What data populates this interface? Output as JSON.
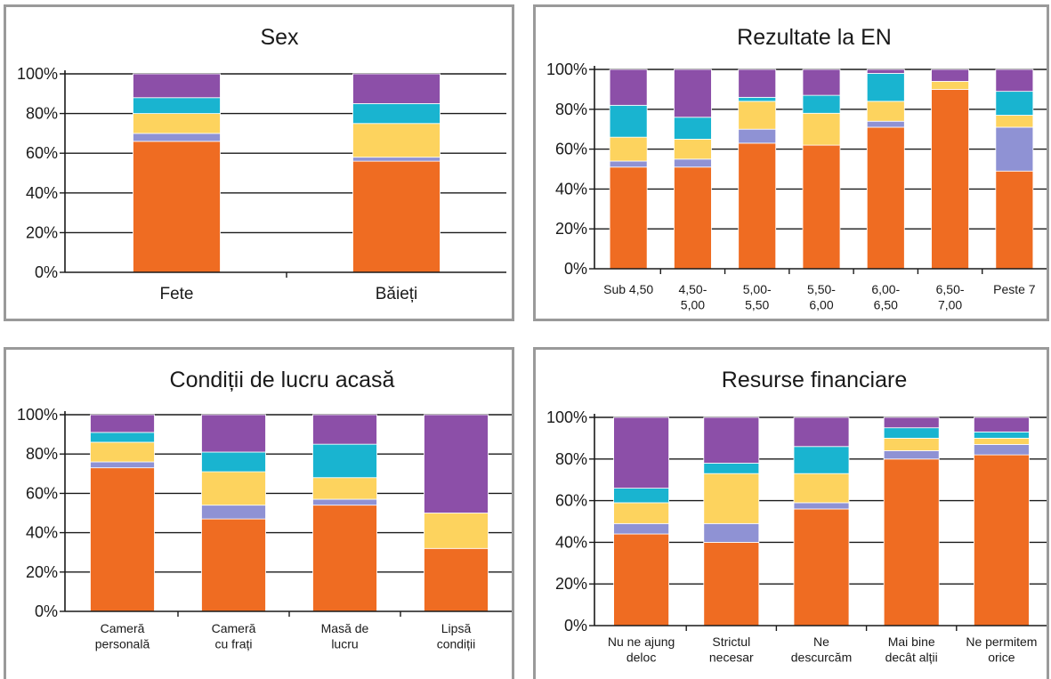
{
  "colors": {
    "series": [
      "#ef6c22",
      "#8f92d4",
      "#fdd35e",
      "#19b4d0",
      "#8c4fa8"
    ],
    "axis": "#1a1a1a",
    "grid": "#1a1a1a",
    "panel_border": "#9a9a9a"
  },
  "chart_data": [
    {
      "type": "bar",
      "stacked": true,
      "title": "Sex",
      "categories": [
        "Fete",
        "Băieți"
      ],
      "yticks": [
        "0%",
        "20%",
        "40%",
        "60%",
        "80%",
        "100%"
      ],
      "ylim": [
        0,
        100
      ],
      "grid": true,
      "series": [
        {
          "values": [
            66,
            56
          ]
        },
        {
          "values": [
            4,
            2
          ]
        },
        {
          "values": [
            10,
            17
          ]
        },
        {
          "values": [
            8,
            10
          ]
        },
        {
          "values": [
            12,
            15
          ]
        }
      ]
    },
    {
      "type": "bar",
      "stacked": true,
      "title": "Rezultate la EN",
      "categories": [
        "Sub 4,50",
        "4,50-\n5,00",
        "5,00-\n5,50",
        "5,50-\n6,00",
        "6,00-\n6,50",
        "6,50-\n7,00",
        "Peste 7"
      ],
      "yticks": [
        "0%",
        "20%",
        "40%",
        "60%",
        "80%",
        "100%"
      ],
      "ylim": [
        0,
        100
      ],
      "grid": true,
      "series": [
        {
          "values": [
            51,
            51,
            63,
            62,
            71,
            90,
            49
          ]
        },
        {
          "values": [
            3,
            4,
            7,
            0,
            3,
            0,
            22
          ]
        },
        {
          "values": [
            12,
            10,
            14,
            16,
            10,
            4,
            6
          ]
        },
        {
          "values": [
            16,
            11,
            2,
            9,
            14,
            0,
            12
          ]
        },
        {
          "values": [
            18,
            24,
            14,
            13,
            2,
            6,
            11
          ]
        }
      ]
    },
    {
      "type": "bar",
      "stacked": true,
      "title": "Condiții de lucru acasă",
      "categories": [
        "Cameră\npersonală",
        "Cameră\ncu frați",
        "Masă de\nlucru",
        "Lipsă\ncondiții"
      ],
      "yticks": [
        "0%",
        "20%",
        "40%",
        "60%",
        "80%",
        "100%"
      ],
      "ylim": [
        0,
        100
      ],
      "grid": true,
      "series": [
        {
          "values": [
            73,
            47,
            54,
            32
          ]
        },
        {
          "values": [
            3,
            7,
            3,
            0
          ]
        },
        {
          "values": [
            10,
            17,
            11,
            18
          ]
        },
        {
          "values": [
            5,
            10,
            17,
            0
          ]
        },
        {
          "values": [
            9,
            19,
            15,
            50
          ]
        }
      ]
    },
    {
      "type": "bar",
      "stacked": true,
      "title": "Resurse financiare",
      "categories": [
        "Nu ne ajung\ndeloc",
        "Strictul\nnecesar",
        "Ne\ndescurcăm",
        "Mai bine\ndecât alții",
        "Ne permitem\norice"
      ],
      "yticks": [
        "0%",
        "20%",
        "40%",
        "60%",
        "80%",
        "100%"
      ],
      "ylim": [
        0,
        100
      ],
      "grid": true,
      "series": [
        {
          "values": [
            44,
            40,
            56,
            80,
            82
          ]
        },
        {
          "values": [
            5,
            9,
            3,
            4,
            5
          ]
        },
        {
          "values": [
            10,
            24,
            14,
            6,
            3
          ]
        },
        {
          "values": [
            7,
            5,
            13,
            5,
            3
          ]
        },
        {
          "values": [
            34,
            22,
            14,
            5,
            7
          ]
        }
      ]
    }
  ]
}
